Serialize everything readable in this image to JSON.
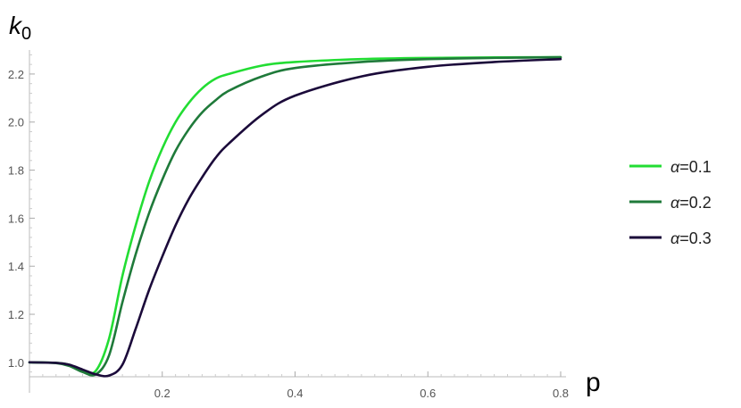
{
  "chart_data": {
    "type": "line",
    "title": "",
    "xlabel": "p",
    "ylabel": "k",
    "ylabel_subscript": "0",
    "xlim": [
      0,
      0.8
    ],
    "ylim": [
      0.94,
      2.3
    ],
    "grid": false,
    "legend_position": "right",
    "x_ticks": [
      0.2,
      0.4,
      0.6,
      0.8
    ],
    "x_tick_labels": [
      "0.2",
      "0.4",
      "0.6",
      "0.8"
    ],
    "y_ticks": [
      1.0,
      1.2,
      1.4,
      1.6,
      1.8,
      2.0,
      2.2
    ],
    "y_tick_labels": [
      "1.0",
      "1.2",
      "1.4",
      "1.6",
      "1.8",
      "2.0",
      "2.2"
    ],
    "series": [
      {
        "name": "α=0.1",
        "legend_symbol": "α",
        "legend_value": "=0.1",
        "color": "#22dd33",
        "x": [
          0,
          0.04,
          0.06,
          0.08,
          0.1,
          0.12,
          0.14,
          0.16,
          0.18,
          0.2,
          0.22,
          0.24,
          0.26,
          0.28,
          0.3,
          0.35,
          0.4,
          0.5,
          0.6,
          0.7,
          0.8
        ],
        "y": [
          1.0,
          0.998,
          0.99,
          0.965,
          0.965,
          1.1,
          1.36,
          1.57,
          1.75,
          1.89,
          2.0,
          2.08,
          2.14,
          2.18,
          2.2,
          2.235,
          2.25,
          2.262,
          2.267,
          2.269,
          2.27
        ]
      },
      {
        "name": "α=0.2",
        "legend_symbol": "α",
        "legend_value": "=0.2",
        "color": "#1f7a3a",
        "x": [
          0,
          0.04,
          0.06,
          0.08,
          0.1,
          0.12,
          0.14,
          0.16,
          0.18,
          0.2,
          0.22,
          0.24,
          0.26,
          0.28,
          0.3,
          0.35,
          0.4,
          0.5,
          0.6,
          0.7,
          0.8
        ],
        "y": [
          1.0,
          0.997,
          0.985,
          0.96,
          0.95,
          1.03,
          1.25,
          1.45,
          1.62,
          1.76,
          1.88,
          1.97,
          2.04,
          2.09,
          2.13,
          2.19,
          2.225,
          2.25,
          2.262,
          2.267,
          2.27
        ]
      },
      {
        "name": "α=0.3",
        "legend_symbol": "α",
        "legend_value": "=0.3",
        "color": "#1b0a3a",
        "x": [
          0,
          0.04,
          0.06,
          0.08,
          0.1,
          0.12,
          0.14,
          0.16,
          0.18,
          0.2,
          0.22,
          0.24,
          0.26,
          0.28,
          0.3,
          0.35,
          0.4,
          0.5,
          0.6,
          0.7,
          0.8
        ],
        "y": [
          1.0,
          0.998,
          0.99,
          0.97,
          0.95,
          0.945,
          0.99,
          1.14,
          1.3,
          1.44,
          1.57,
          1.68,
          1.77,
          1.85,
          1.91,
          2.03,
          2.11,
          2.19,
          2.23,
          2.25,
          2.262
        ]
      }
    ]
  }
}
